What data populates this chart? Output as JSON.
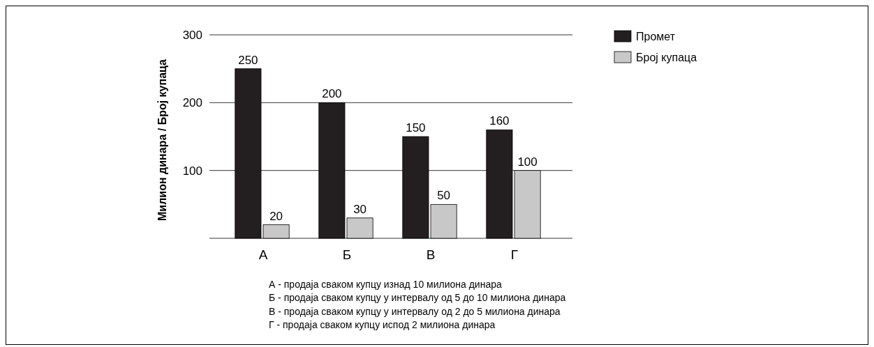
{
  "chart_data": {
    "type": "bar",
    "ylabel": "Милион динара / Број купаца",
    "categories": [
      "А",
      "Б",
      "В",
      "Г"
    ],
    "series": [
      {
        "name": "Промет",
        "color": "#231f20",
        "values": [
          250,
          200,
          150,
          160
        ]
      },
      {
        "name": "Број купаца",
        "color": "#c8c8c8",
        "values": [
          20,
          30,
          50,
          100
        ]
      }
    ],
    "ylim": [
      0,
      300
    ],
    "yticks": [
      100,
      200,
      300
    ],
    "grid": "y",
    "legend": "top right",
    "data_labels": true,
    "annotations": [
      "А - продаја сваком купцу изнад 10 милиона динара",
      "Б - продаја сваком купцу у интервалу од 5 до 10 милиона динара",
      "В - продаја сваком купцу у интервалу од 2 до 5 милиона динара",
      "Г - продаја сваком купцу испод 2 милиона динара"
    ]
  }
}
